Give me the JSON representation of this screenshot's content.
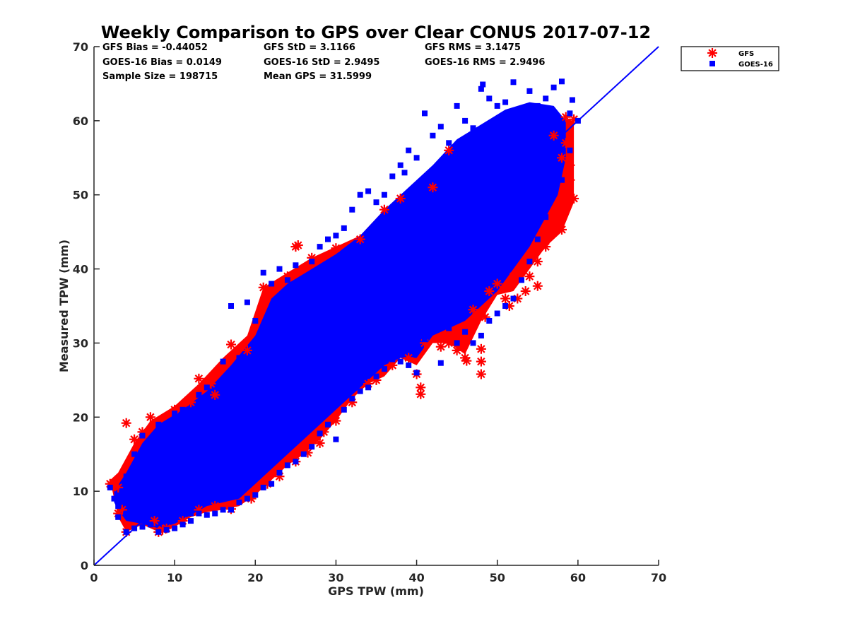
{
  "chart_data": {
    "type": "scatter",
    "title": "Weekly Comparison to GPS over Clear CONUS 2017-07-12",
    "xlabel": "GPS TPW (mm)",
    "ylabel": "Measured TPW (mm)",
    "xlim": [
      0,
      70
    ],
    "ylim": [
      0,
      70
    ],
    "xticks": [
      "0",
      "10",
      "20",
      "30",
      "40",
      "50",
      "60",
      "70"
    ],
    "yticks": [
      "0",
      "10",
      "20",
      "30",
      "40",
      "50",
      "60",
      "70"
    ],
    "grid": false,
    "legend_position": "outside top-right",
    "stats": [
      [
        "GFS Bias = -0.44052",
        "GFS StD = 3.1166",
        "GFS RMS = 3.1475"
      ],
      [
        "GOES-16 Bias = 0.0149",
        "GOES-16 StD = 2.9495",
        "GOES-16 RMS = 2.9496"
      ],
      [
        "Sample Size = 198715",
        "Mean GPS = 31.5999",
        ""
      ]
    ],
    "reference_line": {
      "x": [
        0,
        70
      ],
      "y": [
        0,
        70
      ],
      "color": "#0000ff"
    },
    "series": [
      {
        "name": "GFS",
        "marker": "asterisk",
        "color": "#ff0000",
        "points": [
          [
            2,
            11
          ],
          [
            2.5,
            10.8
          ],
          [
            3,
            10.5
          ],
          [
            3,
            7
          ],
          [
            3.5,
            7.5
          ],
          [
            4,
            19.2
          ],
          [
            4,
            4.5
          ],
          [
            5,
            17
          ],
          [
            6,
            18
          ],
          [
            7,
            20
          ],
          [
            7.5,
            6
          ],
          [
            8,
            4.5
          ],
          [
            8.5,
            4.8
          ],
          [
            9,
            5
          ],
          [
            10,
            21
          ],
          [
            11,
            6
          ],
          [
            12,
            22
          ],
          [
            13,
            25.2
          ],
          [
            13,
            7.5
          ],
          [
            14.5,
            24.5
          ],
          [
            15,
            23
          ],
          [
            15,
            8
          ],
          [
            17,
            29.8
          ],
          [
            17,
            7.6
          ],
          [
            19,
            29
          ],
          [
            19.5,
            9
          ],
          [
            21,
            37.5
          ],
          [
            21.5,
            11
          ],
          [
            22,
            37
          ],
          [
            23,
            12
          ],
          [
            24,
            39
          ],
          [
            25,
            43
          ],
          [
            25.3,
            43.2
          ],
          [
            25,
            14
          ],
          [
            26,
            16
          ],
          [
            26.5,
            15.2
          ],
          [
            27,
            41.5
          ],
          [
            27.5,
            17
          ],
          [
            28,
            16.5
          ],
          [
            28.5,
            18
          ],
          [
            30,
            19.5
          ],
          [
            30,
            42.8
          ],
          [
            32,
            22
          ],
          [
            33,
            44
          ],
          [
            34,
            24.5
          ],
          [
            35,
            25
          ],
          [
            36,
            48
          ],
          [
            37,
            27
          ],
          [
            38,
            49.5
          ],
          [
            39,
            28
          ],
          [
            40,
            25.8
          ],
          [
            40.5,
            24
          ],
          [
            40.5,
            23.1
          ],
          [
            41,
            30
          ],
          [
            42,
            51
          ],
          [
            43,
            29.5
          ],
          [
            44,
            30
          ],
          [
            44,
            56
          ],
          [
            45,
            29
          ],
          [
            46,
            28
          ],
          [
            46.2,
            27.6
          ],
          [
            47,
            33
          ],
          [
            47,
            34.5
          ],
          [
            48,
            29.2
          ],
          [
            48,
            27.5
          ],
          [
            48,
            25.8
          ],
          [
            48.5,
            33.5
          ],
          [
            49,
            37
          ],
          [
            50,
            38
          ],
          [
            51,
            36
          ],
          [
            51.5,
            35
          ],
          [
            52,
            39
          ],
          [
            52.5,
            36
          ],
          [
            53,
            40
          ],
          [
            53.5,
            37
          ],
          [
            54,
            39
          ],
          [
            55,
            37.7
          ],
          [
            55,
            41
          ],
          [
            56,
            43
          ],
          [
            57,
            46
          ],
          [
            58,
            45.3
          ],
          [
            58.5,
            49
          ],
          [
            58.8,
            50.5
          ],
          [
            59,
            54
          ],
          [
            59,
            52
          ],
          [
            59.5,
            49.5
          ],
          [
            58.5,
            60.5
          ],
          [
            59.5,
            60.2
          ],
          [
            57,
            58
          ],
          [
            58.5,
            57
          ],
          [
            58,
            55
          ]
        ]
      },
      {
        "name": "GOES-16",
        "marker": "square",
        "color": "#0000ff",
        "points": [
          [
            2,
            10.5
          ],
          [
            2.5,
            9
          ],
          [
            3,
            8
          ],
          [
            3.5,
            10
          ],
          [
            4,
            7
          ],
          [
            4,
            12
          ],
          [
            5,
            15
          ],
          [
            6,
            17.5
          ],
          [
            7,
            16
          ],
          [
            8,
            19
          ],
          [
            9,
            6
          ],
          [
            10,
            20.5
          ],
          [
            11,
            21
          ],
          [
            12,
            7
          ],
          [
            13,
            23
          ],
          [
            14,
            24
          ],
          [
            16,
            27.5
          ],
          [
            17,
            35
          ],
          [
            18,
            28
          ],
          [
            19,
            35.5
          ],
          [
            20,
            33
          ],
          [
            21,
            39.5
          ],
          [
            22,
            38
          ],
          [
            23,
            40
          ],
          [
            24,
            38.5
          ],
          [
            25,
            40.5
          ],
          [
            27,
            41
          ],
          [
            28,
            43
          ],
          [
            29,
            44
          ],
          [
            30,
            44.5
          ],
          [
            31,
            45.5
          ],
          [
            32,
            48
          ],
          [
            33,
            50
          ],
          [
            34,
            50.5
          ],
          [
            35,
            49
          ],
          [
            36,
            50
          ],
          [
            37,
            52.5
          ],
          [
            38,
            54
          ],
          [
            38.5,
            53
          ],
          [
            39,
            56
          ],
          [
            40,
            55
          ],
          [
            41,
            61
          ],
          [
            42,
            58
          ],
          [
            43,
            59.2
          ],
          [
            44,
            57
          ],
          [
            45,
            62
          ],
          [
            46,
            60
          ],
          [
            47,
            59
          ],
          [
            48,
            64.3
          ],
          [
            48.2,
            64.9
          ],
          [
            49,
            63
          ],
          [
            50,
            62
          ],
          [
            51,
            62.5
          ],
          [
            52,
            65.2
          ],
          [
            53,
            61
          ],
          [
            54,
            64
          ],
          [
            55,
            62
          ],
          [
            56,
            63
          ],
          [
            57,
            64.5
          ],
          [
            58,
            65.3
          ],
          [
            59,
            61
          ],
          [
            59.3,
            62.8
          ],
          [
            60,
            60
          ],
          [
            59,
            56
          ],
          [
            58,
            52
          ],
          [
            56,
            47
          ],
          [
            55,
            44
          ],
          [
            54,
            41
          ],
          [
            53,
            38.5
          ],
          [
            52,
            36
          ],
          [
            51,
            35
          ],
          [
            50,
            34
          ],
          [
            49,
            33
          ],
          [
            48,
            31
          ],
          [
            47,
            30
          ],
          [
            46,
            31.5
          ],
          [
            45,
            30
          ],
          [
            44,
            32
          ],
          [
            43,
            27.3
          ],
          [
            42,
            32.5
          ],
          [
            41,
            30.5
          ],
          [
            40,
            26
          ],
          [
            39,
            27
          ],
          [
            38,
            27.5
          ],
          [
            37,
            27.8
          ],
          [
            36,
            26.5
          ],
          [
            35,
            25.5
          ],
          [
            34,
            24
          ],
          [
            33,
            23.5
          ],
          [
            32,
            22.5
          ],
          [
            31,
            21
          ],
          [
            30,
            17
          ],
          [
            29,
            19
          ],
          [
            28,
            17.8
          ],
          [
            27,
            16
          ],
          [
            26,
            15
          ],
          [
            25,
            14
          ],
          [
            24,
            13.5
          ],
          [
            23,
            12.5
          ],
          [
            22,
            11
          ],
          [
            21,
            10.5
          ],
          [
            20,
            9.5
          ],
          [
            19,
            9
          ],
          [
            18,
            8.5
          ],
          [
            17,
            7.5
          ],
          [
            16,
            7.5
          ],
          [
            15,
            7
          ],
          [
            14,
            6.8
          ],
          [
            13,
            7
          ],
          [
            12,
            6
          ],
          [
            11,
            5.5
          ],
          [
            10,
            5
          ],
          [
            9,
            4.8
          ],
          [
            8,
            4.5
          ],
          [
            7,
            5.5
          ],
          [
            6,
            5.2
          ],
          [
            5,
            5
          ],
          [
            4,
            4.5
          ],
          [
            3,
            6.5
          ],
          [
            25,
            30
          ],
          [
            30,
            35
          ],
          [
            35,
            40
          ],
          [
            40,
            45
          ],
          [
            45,
            50
          ],
          [
            50,
            55
          ],
          [
            20,
            25
          ],
          [
            15,
            20
          ],
          [
            10,
            15
          ],
          [
            6,
            11
          ]
        ]
      }
    ]
  }
}
